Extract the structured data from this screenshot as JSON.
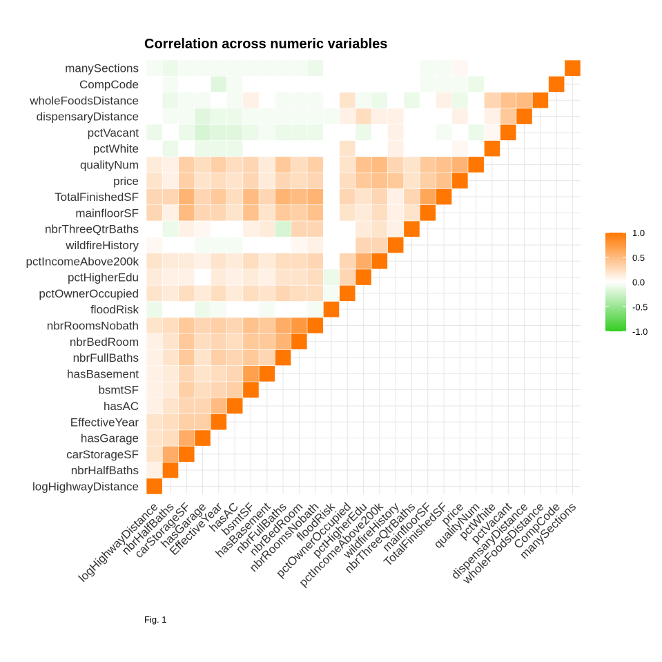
{
  "chart_data": {
    "type": "heatmap",
    "title": "Correlation across numeric variables",
    "caption": "Fig. 1",
    "variables": [
      "logHighwayDistance",
      "nbrHalfBaths",
      "carStorageSF",
      "hasGarage",
      "EffectiveYear",
      "hasAC",
      "bsmtSF",
      "hasBasement",
      "nbrFullBaths",
      "nbrBedRoom",
      "nbrRoomsNobath",
      "floodRisk",
      "pctOwnerOccupied",
      "pctHigherEdu",
      "pctIncomeAbove200k",
      "wildfireHistory",
      "nbrThreeQtrBaths",
      "mainfloorSF",
      "TotalFinishedSF",
      "price",
      "qualityNum",
      "pctWhite",
      "pctVacant",
      "dispensaryDistance",
      "wholeFoodsDistance",
      "CompCode",
      "manySections"
    ],
    "triangle": "lower",
    "values": [
      [
        1.0
      ],
      [
        0.1,
        1.0
      ],
      [
        0.2,
        0.6,
        1.0
      ],
      [
        0.2,
        0.25,
        0.6,
        1.0
      ],
      [
        0.2,
        0.25,
        0.35,
        0.35,
        1.0
      ],
      [
        0.1,
        0.2,
        0.3,
        0.3,
        0.5,
        1.0
      ],
      [
        0.1,
        0.15,
        0.35,
        0.25,
        0.3,
        0.35,
        1.0
      ],
      [
        0.1,
        0.15,
        0.3,
        0.2,
        0.25,
        0.3,
        0.7,
        1.0
      ],
      [
        0.1,
        0.2,
        0.4,
        0.2,
        0.35,
        0.3,
        0.4,
        0.3,
        1.0
      ],
      [
        0.1,
        0.2,
        0.4,
        0.25,
        0.3,
        0.25,
        0.4,
        0.4,
        0.55,
        1.0
      ],
      [
        0.2,
        0.25,
        0.4,
        0.3,
        0.35,
        0.3,
        0.45,
        0.4,
        0.6,
        0.75,
        1.0
      ],
      [
        -0.1,
        0.0,
        0.0,
        -0.1,
        -0.05,
        0.0,
        0.0,
        -0.05,
        0.0,
        0.0,
        -0.05,
        1.0
      ],
      [
        0.2,
        0.15,
        0.25,
        0.15,
        0.25,
        0.15,
        0.25,
        0.2,
        0.3,
        0.25,
        0.25,
        -0.05,
        1.0
      ],
      [
        0.15,
        0.1,
        0.1,
        0.0,
        0.15,
        0.1,
        0.15,
        0.1,
        0.2,
        0.2,
        0.25,
        -0.1,
        0.3,
        1.0
      ],
      [
        0.2,
        0.15,
        0.15,
        0.1,
        0.2,
        0.15,
        0.25,
        0.15,
        0.25,
        0.25,
        0.3,
        0.0,
        0.3,
        0.6,
        1.0
      ],
      [
        0.05,
        0.0,
        0.0,
        -0.05,
        -0.05,
        -0.05,
        0.0,
        0.0,
        0.0,
        0.05,
        0.1,
        0.0,
        0.0,
        0.3,
        0.3,
        1.0
      ],
      [
        0.0,
        -0.1,
        0.1,
        0.05,
        0.0,
        0.0,
        0.1,
        0.15,
        -0.2,
        0.3,
        0.3,
        0.0,
        0.0,
        0.15,
        0.2,
        0.1,
        1.0
      ],
      [
        0.3,
        0.1,
        0.5,
        0.3,
        0.3,
        0.2,
        0.45,
        0.2,
        0.4,
        0.35,
        0.45,
        0.0,
        0.2,
        0.15,
        0.25,
        0.1,
        0.2,
        1.0
      ],
      [
        0.3,
        0.3,
        0.55,
        0.3,
        0.4,
        0.25,
        0.5,
        0.3,
        0.55,
        0.5,
        0.55,
        0.0,
        0.3,
        0.2,
        0.3,
        0.1,
        0.3,
        0.65,
        1.0
      ],
      [
        0.2,
        0.1,
        0.35,
        0.2,
        0.25,
        0.2,
        0.3,
        0.15,
        0.3,
        0.25,
        0.3,
        0.0,
        0.25,
        0.4,
        0.45,
        0.4,
        0.2,
        0.35,
        0.45,
        1.0
      ],
      [
        0.15,
        0.1,
        0.35,
        0.25,
        0.35,
        0.25,
        0.3,
        0.15,
        0.4,
        0.25,
        0.35,
        0.0,
        0.2,
        0.45,
        0.5,
        0.3,
        0.2,
        0.4,
        0.45,
        0.55,
        1.0
      ],
      [
        0.0,
        -0.1,
        0.0,
        -0.1,
        -0.1,
        -0.1,
        0.0,
        0.0,
        0.0,
        0.0,
        0.0,
        0.0,
        0.2,
        0.0,
        0.0,
        0.1,
        0.0,
        0.0,
        0.0,
        0.05,
        0.0,
        1.0
      ],
      [
        -0.1,
        0.0,
        -0.1,
        -0.2,
        -0.15,
        -0.15,
        -0.1,
        -0.05,
        -0.1,
        -0.1,
        -0.1,
        0.0,
        0.0,
        -0.1,
        0.0,
        0.1,
        0.0,
        0.0,
        -0.05,
        0.0,
        -0.1,
        0.05,
        1.0
      ],
      [
        0.0,
        -0.05,
        -0.05,
        -0.15,
        -0.1,
        -0.1,
        -0.05,
        -0.05,
        -0.05,
        -0.05,
        -0.05,
        -0.05,
        0.1,
        0.25,
        0.1,
        0.1,
        0.0,
        0.0,
        0.0,
        0.1,
        0.0,
        0.1,
        0.4,
        1.0
      ],
      [
        0.0,
        -0.1,
        -0.05,
        -0.05,
        0.0,
        -0.05,
        0.1,
        0.0,
        -0.05,
        -0.05,
        -0.05,
        0.0,
        0.2,
        -0.05,
        -0.1,
        0.0,
        -0.1,
        0.0,
        0.1,
        -0.1,
        0.0,
        0.3,
        0.45,
        0.5,
        1.0
      ],
      [
        0.0,
        -0.05,
        0.0,
        0.0,
        -0.15,
        -0.05,
        0.0,
        0.0,
        0.0,
        0.0,
        0.0,
        0.0,
        0.0,
        0.0,
        0.0,
        0.0,
        0.0,
        -0.05,
        -0.05,
        -0.05,
        -0.1,
        0.0,
        0.0,
        0.0,
        0.0,
        1.0
      ],
      [
        -0.05,
        -0.1,
        -0.05,
        -0.05,
        -0.05,
        -0.05,
        -0.05,
        -0.05,
        -0.05,
        -0.05,
        -0.1,
        0.0,
        0.0,
        0.0,
        0.0,
        0.0,
        0.0,
        -0.05,
        -0.05,
        0.05,
        0.0,
        0.0,
        0.0,
        0.0,
        0.0,
        0.0,
        1.0
      ]
    ],
    "color_scale": {
      "low": "#33cc22",
      "mid": "#ffffff",
      "high": "#ff7700",
      "limits": [
        -1.0,
        1.0
      ]
    },
    "legend": {
      "position": "right",
      "ticks": [
        "1.0",
        "0.5",
        "0.0",
        "-0.5",
        "-1.0"
      ],
      "tick_values": [
        1.0,
        0.5,
        0.0,
        -0.5,
        -1.0
      ]
    },
    "grid": true
  }
}
